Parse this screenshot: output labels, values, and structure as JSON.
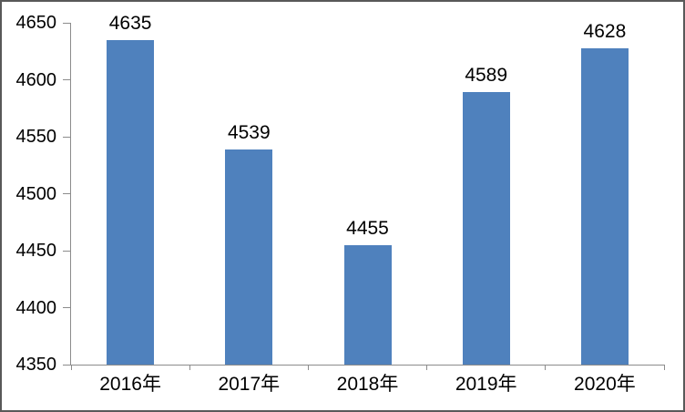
{
  "chart_data": {
    "type": "bar",
    "title": "",
    "xlabel": "",
    "ylabel": "",
    "categories": [
      "2016年",
      "2017年",
      "2018年",
      "2019年",
      "2020年"
    ],
    "values": [
      4635,
      4539,
      4455,
      4589,
      4628
    ],
    "data_labels": [
      "4635",
      "4539",
      "4455",
      "4589",
      "4628"
    ],
    "ylim": [
      4350,
      4650
    ],
    "ytick_interval": 50,
    "yticks": [
      4650,
      4600,
      4550,
      4500,
      4450,
      4400,
      4350
    ],
    "grid": false,
    "legend": null,
    "colors": {
      "bar": "#4F81BD",
      "axis": "#8C8C8C",
      "border": "#595959",
      "text": "#000000",
      "background": "#FFFFFF"
    }
  }
}
